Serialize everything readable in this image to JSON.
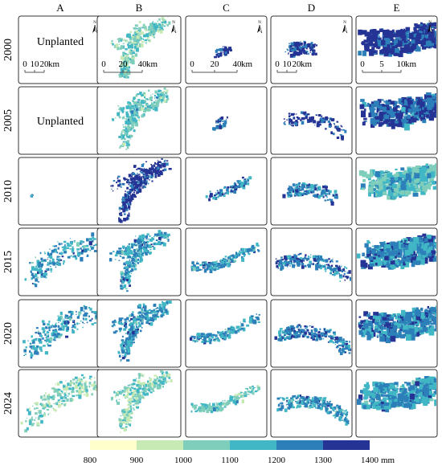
{
  "columns": [
    "A",
    "B",
    "C",
    "D",
    "E"
  ],
  "rows": [
    "2000",
    "2005",
    "2010",
    "2015",
    "2020",
    "2024"
  ],
  "unplanted_label": "Unplanted",
  "unplanted_cells": [
    [
      "2000",
      "A"
    ],
    [
      "2005",
      "A"
    ]
  ],
  "north_arrow_label": "N",
  "scale_bars": [
    {
      "column": "A",
      "ticks": [
        "0",
        "10",
        "20"
      ],
      "unit": "km"
    },
    {
      "column": "B",
      "ticks": [
        "0",
        "20",
        "40"
      ],
      "unit": "km"
    },
    {
      "column": "C",
      "ticks": [
        "0",
        "20",
        "40"
      ],
      "unit": "km"
    },
    {
      "column": "D",
      "ticks": [
        "0",
        "10",
        "20"
      ],
      "unit": "km"
    },
    {
      "column": "E",
      "ticks": [
        "0",
        "5",
        "10"
      ],
      "unit": "km"
    }
  ],
  "legend": {
    "ticks": [
      "800",
      "900",
      "1000",
      "1100",
      "1200",
      "1300",
      "1400"
    ],
    "unit": "mm",
    "classes": [
      {
        "range": "800-900",
        "color": "#ffffcc"
      },
      {
        "range": "900-1000",
        "color": "#c7e9b4"
      },
      {
        "range": "1000-1100",
        "color": "#7fcdbb"
      },
      {
        "range": "1100-1200",
        "color": "#41b6c4"
      },
      {
        "range": "1200-1300",
        "color": "#2c7fb8"
      },
      {
        "range": "1300-1400",
        "color": "#253494"
      }
    ]
  }
}
